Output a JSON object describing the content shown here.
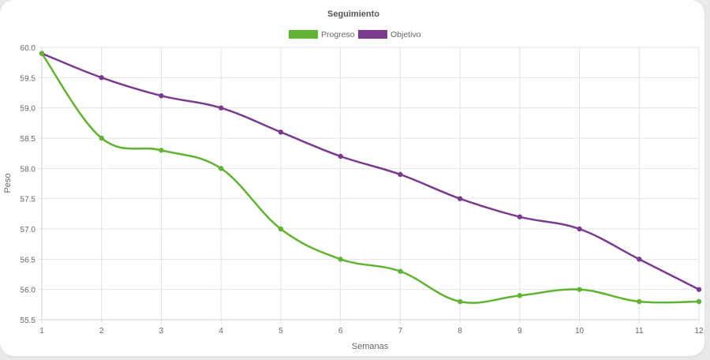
{
  "chart_data": {
    "type": "line",
    "title": "Seguimiento",
    "xlabel": "Semanas",
    "ylabel": "Peso",
    "x": [
      1,
      2,
      3,
      4,
      5,
      6,
      7,
      8,
      9,
      10,
      11,
      12
    ],
    "ylim": [
      55.5,
      60.0
    ],
    "y_ticks": [
      "60.0",
      "59.5",
      "59.0",
      "58.5",
      "58.0",
      "57.5",
      "57.0",
      "56.5",
      "56.0",
      "55.5"
    ],
    "grid": true,
    "legend_position": "top-center",
    "series": [
      {
        "name": "Progreso",
        "color": "#62b233",
        "values": [
          59.9,
          58.5,
          58.3,
          58.0,
          57.0,
          56.5,
          56.3,
          55.8,
          55.9,
          56.0,
          55.8,
          55.8
        ]
      },
      {
        "name": "Objetivo",
        "color": "#7a3b8f",
        "values": [
          59.9,
          59.5,
          59.2,
          59.0,
          58.6,
          58.2,
          57.9,
          57.5,
          57.2,
          57.0,
          56.5,
          56.0
        ]
      }
    ]
  }
}
